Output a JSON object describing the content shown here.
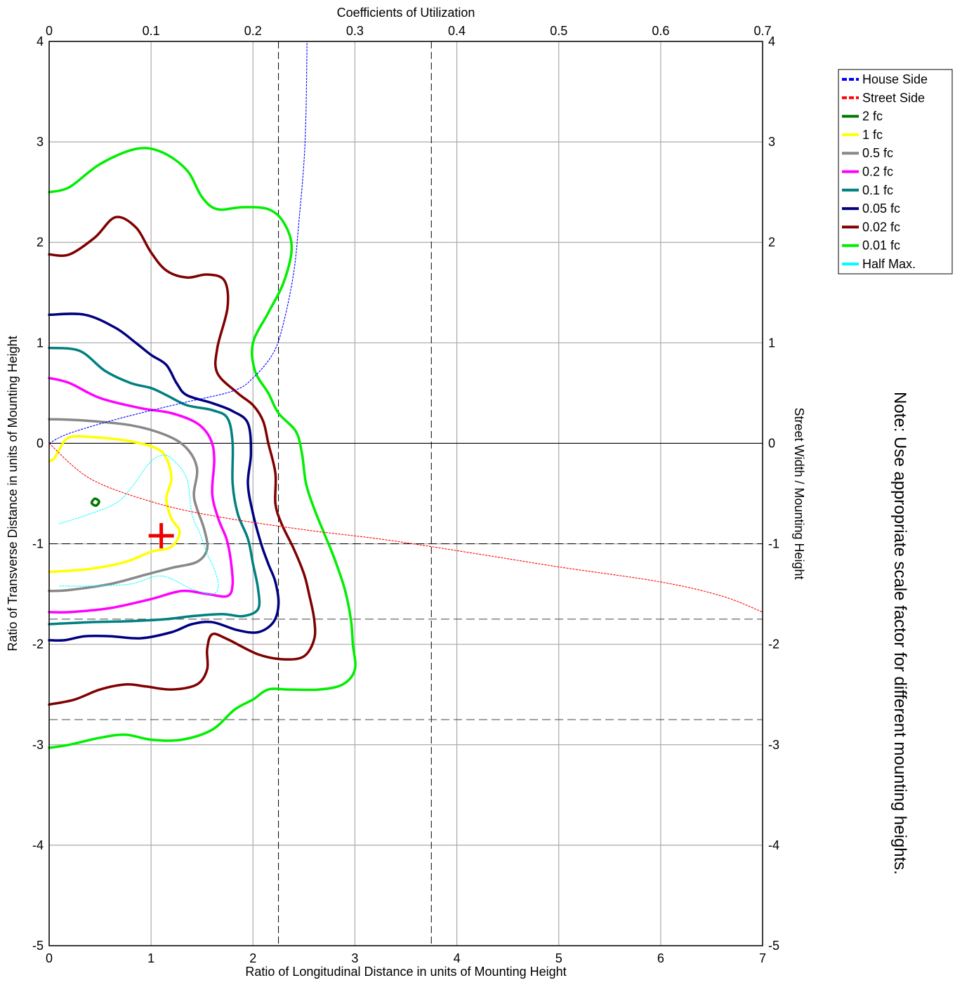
{
  "chart_data": {
    "type": "line",
    "title": "",
    "xlabel": "Ratio of Longitudinal Distance in units of Mounting Height",
    "ylabel": "Ratio of Transverse Distance in units of Mounting Height",
    "top_xlabel": "Coefficients of Utilization",
    "right_ylabel": "Street Width / Mounting Height",
    "note": "Note: Use appropriate scale factor for different mounting heights.",
    "xlim": [
      0,
      7
    ],
    "ylim": [
      -5,
      4
    ],
    "top_xlim": [
      0,
      0.7
    ],
    "grid": true,
    "legend_position": "top-right",
    "x_ticks": [
      "0",
      "1",
      "2",
      "3",
      "4",
      "5",
      "6",
      "7"
    ],
    "y_ticks": [
      "-5",
      "-4",
      "-3",
      "-2",
      "-1",
      "0",
      "1",
      "2",
      "3",
      "4"
    ],
    "top_ticks": [
      "0",
      "0.1",
      "0.2",
      "0.3",
      "0.4",
      "0.5",
      "0.6",
      "0.7"
    ],
    "reference_lines": {
      "vertical": [
        2.25,
        3.75
      ],
      "horizontal": [
        -1.75,
        -2.75
      ]
    },
    "marker": {
      "x": 1.1,
      "y": -0.92,
      "shape": "plus",
      "color": "#ee0000"
    },
    "cu_curves": [
      {
        "name": "House Side",
        "color": "#0000ff",
        "points": [
          [
            0,
            0
          ],
          [
            0.02,
            0.1
          ],
          [
            0.07,
            0.25
          ],
          [
            0.13,
            0.4
          ],
          [
            0.18,
            0.52
          ],
          [
            0.2,
            0.65
          ],
          [
            0.22,
            0.9
          ],
          [
            0.23,
            1.2
          ],
          [
            0.24,
            1.7
          ],
          [
            0.245,
            2.2
          ],
          [
            0.25,
            2.8
          ],
          [
            0.252,
            3.3
          ],
          [
            0.253,
            4.0
          ]
        ]
      },
      {
        "name": "Street Side",
        "color": "#ff0000",
        "points": [
          [
            0,
            0
          ],
          [
            0.04,
            -0.35
          ],
          [
            0.1,
            -0.58
          ],
          [
            0.16,
            -0.72
          ],
          [
            0.25,
            -0.86
          ],
          [
            0.33,
            -0.96
          ],
          [
            0.42,
            -1.1
          ],
          [
            0.5,
            -1.23
          ],
          [
            0.6,
            -1.38
          ],
          [
            0.66,
            -1.52
          ],
          [
            0.7,
            -1.68
          ]
        ]
      }
    ],
    "series": [
      {
        "name": "2 fc",
        "color": "#007700",
        "points": [
          [
            0.42,
            -0.58
          ],
          [
            0.45,
            -0.55
          ],
          [
            0.49,
            -0.58
          ],
          [
            0.46,
            -0.62
          ],
          [
            0.42,
            -0.6
          ],
          [
            0.42,
            -0.58
          ]
        ]
      },
      {
        "name": "1 fc",
        "color": "#ffff00",
        "points": [
          [
            0,
            -0.18
          ],
          [
            0.05,
            -0.15
          ],
          [
            0.1,
            -0.06
          ],
          [
            0.2,
            0.06
          ],
          [
            0.45,
            0.06
          ],
          [
            0.8,
            0.02
          ],
          [
            1.05,
            -0.05
          ],
          [
            1.15,
            -0.15
          ],
          [
            1.2,
            -0.35
          ],
          [
            1.15,
            -0.55
          ],
          [
            1.2,
            -0.75
          ],
          [
            1.28,
            -0.88
          ],
          [
            1.2,
            -1.03
          ],
          [
            1.0,
            -1.08
          ],
          [
            0.75,
            -1.18
          ],
          [
            0.4,
            -1.25
          ],
          [
            0,
            -1.28
          ]
        ]
      },
      {
        "name": "0.5 fc",
        "color": "#888888",
        "points": [
          [
            0,
            0.24
          ],
          [
            0.3,
            0.23
          ],
          [
            0.8,
            0.18
          ],
          [
            1.15,
            0.08
          ],
          [
            1.35,
            -0.05
          ],
          [
            1.45,
            -0.25
          ],
          [
            1.42,
            -0.5
          ],
          [
            1.45,
            -0.65
          ],
          [
            1.52,
            -0.85
          ],
          [
            1.55,
            -1.05
          ],
          [
            1.45,
            -1.18
          ],
          [
            1.2,
            -1.24
          ],
          [
            0.9,
            -1.32
          ],
          [
            0.6,
            -1.4
          ],
          [
            0.2,
            -1.46
          ],
          [
            0,
            -1.47
          ]
        ]
      },
      {
        "name": "0.2 fc",
        "color": "#ff00ff",
        "points": [
          [
            0,
            0.65
          ],
          [
            0.2,
            0.6
          ],
          [
            0.5,
            0.45
          ],
          [
            0.9,
            0.35
          ],
          [
            1.2,
            0.3
          ],
          [
            1.45,
            0.2
          ],
          [
            1.58,
            0.05
          ],
          [
            1.62,
            -0.15
          ],
          [
            1.6,
            -0.5
          ],
          [
            1.66,
            -0.75
          ],
          [
            1.74,
            -0.95
          ],
          [
            1.78,
            -1.15
          ],
          [
            1.8,
            -1.4
          ],
          [
            1.75,
            -1.52
          ],
          [
            1.55,
            -1.5
          ],
          [
            1.3,
            -1.47
          ],
          [
            1.0,
            -1.55
          ],
          [
            0.6,
            -1.64
          ],
          [
            0.2,
            -1.68
          ],
          [
            0,
            -1.68
          ]
        ]
      },
      {
        "name": "0.1 fc",
        "color": "#008080",
        "points": [
          [
            0,
            0.95
          ],
          [
            0.3,
            0.92
          ],
          [
            0.55,
            0.72
          ],
          [
            0.8,
            0.6
          ],
          [
            1.0,
            0.55
          ],
          [
            1.15,
            0.48
          ],
          [
            1.35,
            0.38
          ],
          [
            1.6,
            0.33
          ],
          [
            1.75,
            0.25
          ],
          [
            1.8,
            0.0
          ],
          [
            1.8,
            -0.4
          ],
          [
            1.85,
            -0.7
          ],
          [
            1.95,
            -0.95
          ],
          [
            2.0,
            -1.2
          ],
          [
            2.05,
            -1.45
          ],
          [
            2.05,
            -1.65
          ],
          [
            1.9,
            -1.72
          ],
          [
            1.7,
            -1.7
          ],
          [
            1.4,
            -1.72
          ],
          [
            1.15,
            -1.75
          ],
          [
            0.8,
            -1.77
          ],
          [
            0.4,
            -1.78
          ],
          [
            0,
            -1.8
          ]
        ]
      },
      {
        "name": "0.05 fc",
        "color": "#000080",
        "points": [
          [
            0,
            1.28
          ],
          [
            0.35,
            1.28
          ],
          [
            0.65,
            1.15
          ],
          [
            0.85,
            1.0
          ],
          [
            1.0,
            0.88
          ],
          [
            1.15,
            0.78
          ],
          [
            1.25,
            0.6
          ],
          [
            1.35,
            0.48
          ],
          [
            1.6,
            0.4
          ],
          [
            1.8,
            0.32
          ],
          [
            1.95,
            0.2
          ],
          [
            1.98,
            -0.1
          ],
          [
            1.95,
            -0.4
          ],
          [
            2.0,
            -0.7
          ],
          [
            2.08,
            -1.0
          ],
          [
            2.15,
            -1.2
          ],
          [
            2.22,
            -1.38
          ],
          [
            2.25,
            -1.6
          ],
          [
            2.2,
            -1.78
          ],
          [
            2.05,
            -1.88
          ],
          [
            1.85,
            -1.86
          ],
          [
            1.6,
            -1.78
          ],
          [
            1.4,
            -1.8
          ],
          [
            1.2,
            -1.88
          ],
          [
            0.9,
            -1.94
          ],
          [
            0.6,
            -1.92
          ],
          [
            0.35,
            -1.92
          ],
          [
            0.15,
            -1.96
          ],
          [
            0,
            -1.96
          ]
        ]
      },
      {
        "name": "0.02 fc",
        "color": "#800000",
        "points": [
          [
            0,
            1.88
          ],
          [
            0.2,
            1.88
          ],
          [
            0.45,
            2.05
          ],
          [
            0.65,
            2.25
          ],
          [
            0.85,
            2.15
          ],
          [
            1.0,
            1.9
          ],
          [
            1.15,
            1.72
          ],
          [
            1.35,
            1.65
          ],
          [
            1.55,
            1.68
          ],
          [
            1.72,
            1.62
          ],
          [
            1.75,
            1.35
          ],
          [
            1.65,
            0.95
          ],
          [
            1.65,
            0.7
          ],
          [
            1.85,
            0.5
          ],
          [
            2.0,
            0.38
          ],
          [
            2.1,
            0.22
          ],
          [
            2.15,
            0.0
          ],
          [
            2.22,
            -0.3
          ],
          [
            2.22,
            -0.6
          ],
          [
            2.28,
            -0.8
          ],
          [
            2.4,
            -1.05
          ],
          [
            2.5,
            -1.3
          ],
          [
            2.55,
            -1.5
          ],
          [
            2.6,
            -1.75
          ],
          [
            2.6,
            -1.95
          ],
          [
            2.5,
            -2.12
          ],
          [
            2.3,
            -2.15
          ],
          [
            2.05,
            -2.1
          ],
          [
            1.75,
            -1.95
          ],
          [
            1.6,
            -1.9
          ],
          [
            1.55,
            -2.05
          ],
          [
            1.55,
            -2.25
          ],
          [
            1.45,
            -2.4
          ],
          [
            1.2,
            -2.45
          ],
          [
            0.95,
            -2.42
          ],
          [
            0.75,
            -2.4
          ],
          [
            0.5,
            -2.45
          ],
          [
            0.25,
            -2.55
          ],
          [
            0,
            -2.6
          ]
        ]
      },
      {
        "name": "0.01 fc",
        "color": "#00ee00",
        "points": [
          [
            0,
            2.5
          ],
          [
            0.2,
            2.55
          ],
          [
            0.5,
            2.78
          ],
          [
            0.85,
            2.93
          ],
          [
            1.1,
            2.9
          ],
          [
            1.35,
            2.72
          ],
          [
            1.5,
            2.45
          ],
          [
            1.65,
            2.33
          ],
          [
            1.9,
            2.35
          ],
          [
            2.15,
            2.33
          ],
          [
            2.3,
            2.2
          ],
          [
            2.38,
            1.95
          ],
          [
            2.3,
            1.6
          ],
          [
            2.15,
            1.3
          ],
          [
            2.0,
            1.0
          ],
          [
            2.02,
            0.72
          ],
          [
            2.15,
            0.5
          ],
          [
            2.25,
            0.3
          ],
          [
            2.42,
            0.12
          ],
          [
            2.48,
            -0.1
          ],
          [
            2.52,
            -0.4
          ],
          [
            2.6,
            -0.65
          ],
          [
            2.7,
            -0.9
          ],
          [
            2.8,
            -1.15
          ],
          [
            2.9,
            -1.45
          ],
          [
            2.96,
            -1.75
          ],
          [
            2.98,
            -2.0
          ],
          [
            3.0,
            -2.25
          ],
          [
            2.88,
            -2.4
          ],
          [
            2.65,
            -2.45
          ],
          [
            2.35,
            -2.45
          ],
          [
            2.15,
            -2.45
          ],
          [
            2.0,
            -2.55
          ],
          [
            1.82,
            -2.65
          ],
          [
            1.6,
            -2.85
          ],
          [
            1.3,
            -2.95
          ],
          [
            1.0,
            -2.95
          ],
          [
            0.75,
            -2.9
          ],
          [
            0.5,
            -2.93
          ],
          [
            0.2,
            -3.0
          ],
          [
            0,
            -3.03
          ]
        ]
      },
      {
        "name": "Half Max.",
        "color": "#00ffff",
        "points": [
          [
            0.1,
            -0.8
          ],
          [
            0.35,
            -0.72
          ],
          [
            0.65,
            -0.6
          ],
          [
            0.8,
            -0.45
          ],
          [
            0.98,
            -0.2
          ],
          [
            1.1,
            -0.12
          ],
          [
            1.2,
            -0.15
          ],
          [
            1.35,
            -0.35
          ],
          [
            1.4,
            -0.7
          ],
          [
            1.48,
            -0.9
          ],
          [
            1.55,
            -1.1
          ],
          [
            1.62,
            -1.25
          ],
          [
            1.66,
            -1.42
          ],
          [
            1.6,
            -1.5
          ],
          [
            1.4,
            -1.45
          ],
          [
            1.1,
            -1.32
          ],
          [
            0.8,
            -1.4
          ],
          [
            0.4,
            -1.42
          ],
          [
            0.1,
            -1.42
          ]
        ]
      }
    ],
    "legend": [
      {
        "label": "House Side",
        "color": "#0000ff",
        "style": "dashed"
      },
      {
        "label": "Street Side",
        "color": "#ff0000",
        "style": "dashed"
      },
      {
        "label": "2 fc",
        "color": "#007700",
        "style": "solid"
      },
      {
        "label": "1 fc",
        "color": "#ffff00",
        "style": "solid"
      },
      {
        "label": "0.5 fc",
        "color": "#888888",
        "style": "solid"
      },
      {
        "label": "0.2 fc",
        "color": "#ff00ff",
        "style": "solid"
      },
      {
        "label": "0.1 fc",
        "color": "#008080",
        "style": "solid"
      },
      {
        "label": "0.05 fc",
        "color": "#000080",
        "style": "solid"
      },
      {
        "label": "0.02 fc",
        "color": "#800000",
        "style": "solid"
      },
      {
        "label": "0.01 fc",
        "color": "#00ee00",
        "style": "solid"
      },
      {
        "label": "Half Max.",
        "color": "#00ffff",
        "style": "solid"
      }
    ]
  }
}
